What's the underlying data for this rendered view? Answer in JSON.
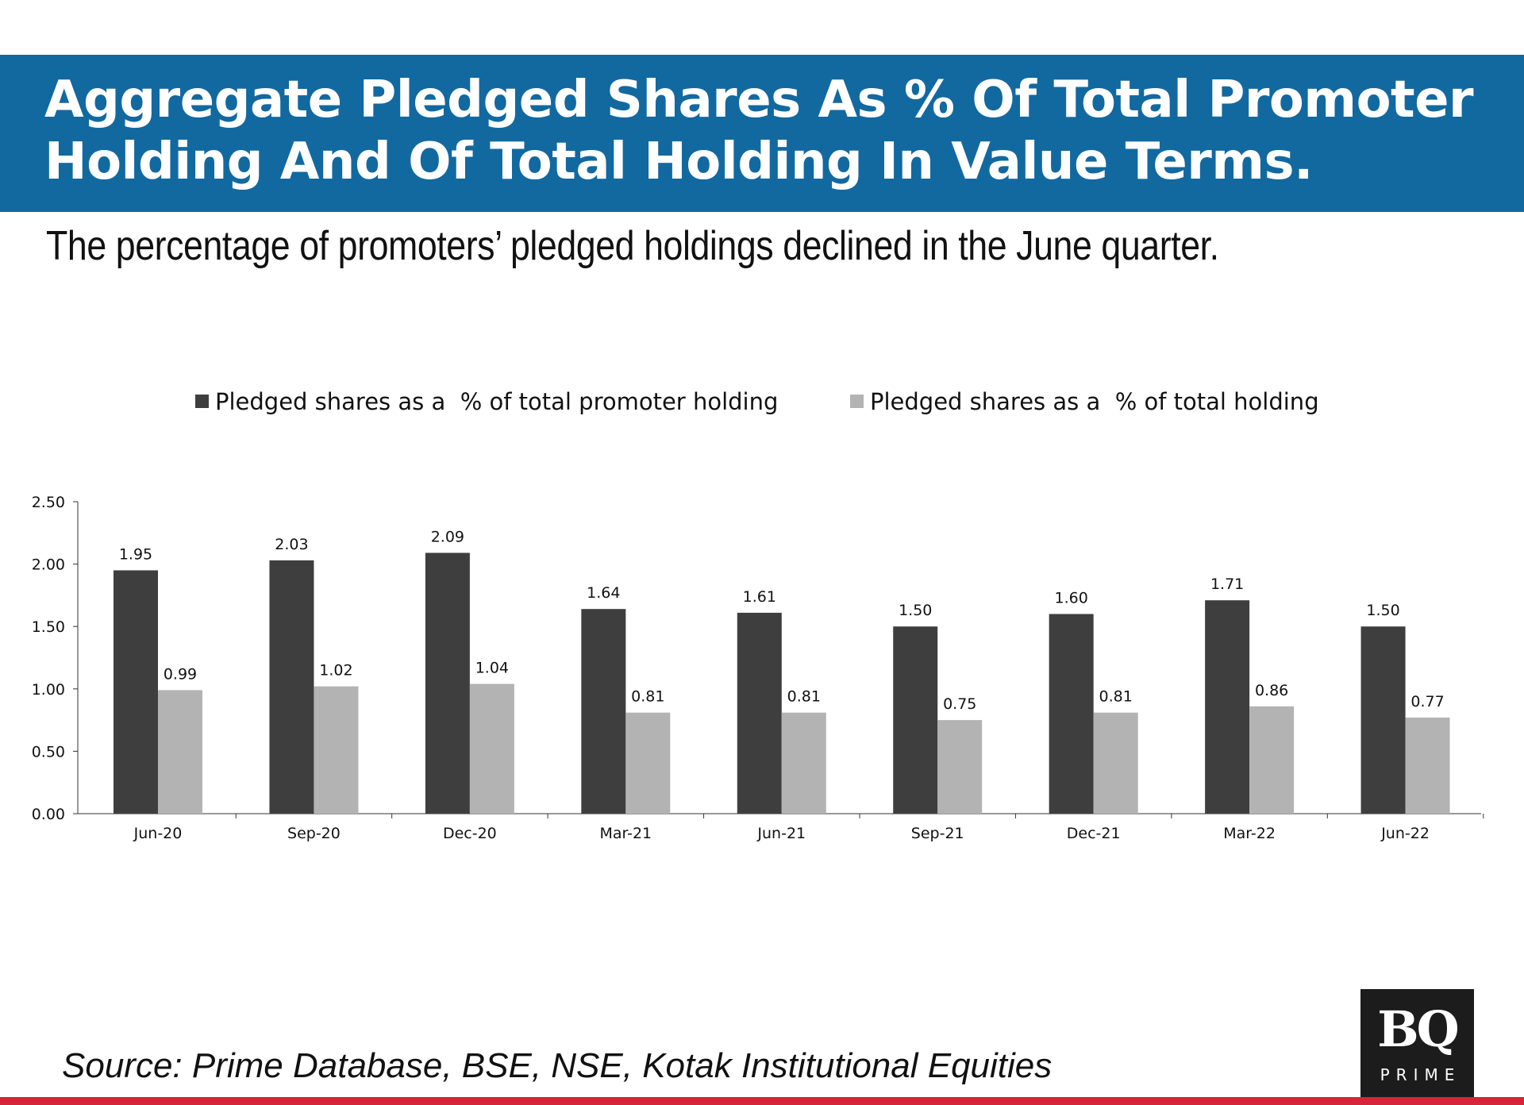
{
  "header": {
    "title_line1": "Aggregate Pledged Shares As % Of Total Promoter",
    "title_line2": "Holding And Of Total Holding In Value Terms.",
    "subtitle": "The percentage of promoters’ pledged holdings declined in the June quarter."
  },
  "source": "Source: Prime Database, BSE, NSE, Kotak Institutional Equities",
  "logo": {
    "text_top": "BQ",
    "text_bottom": "PRIME"
  },
  "colors": {
    "band": "#1269a0",
    "series1": "#3e3e3e",
    "series2": "#b3b3b3",
    "footer": "#d5253a"
  },
  "chart_data": {
    "type": "bar",
    "title": "",
    "xlabel": "",
    "ylabel": "",
    "ylim": [
      0,
      2.5
    ],
    "yticks": [
      "0.00",
      "0.50",
      "1.00",
      "1.50",
      "2.00",
      "2.50"
    ],
    "legend_position": "top",
    "categories": [
      "Jun-20",
      "Sep-20",
      "Dec-20",
      "Mar-21",
      "Jun-21",
      "Sep-21",
      "Dec-21",
      "Mar-22",
      "Jun-22"
    ],
    "series": [
      {
        "name": "Pledged shares as a  % of total promoter holding",
        "values": [
          1.95,
          2.03,
          2.09,
          1.64,
          1.61,
          1.5,
          1.6,
          1.71,
          1.5
        ],
        "labels": [
          "1.95",
          "2.03",
          "2.09",
          "1.64",
          "1.61",
          "1.50",
          "1.60",
          "1.71",
          "1.50"
        ]
      },
      {
        "name": "Pledged shares as a  % of total holding",
        "values": [
          0.99,
          1.02,
          1.04,
          0.81,
          0.81,
          0.75,
          0.81,
          0.86,
          0.77
        ],
        "labels": [
          "0.99",
          "1.02",
          "1.04",
          "0.81",
          "0.81",
          "0.75",
          "0.81",
          "0.86",
          "0.77"
        ]
      }
    ]
  }
}
